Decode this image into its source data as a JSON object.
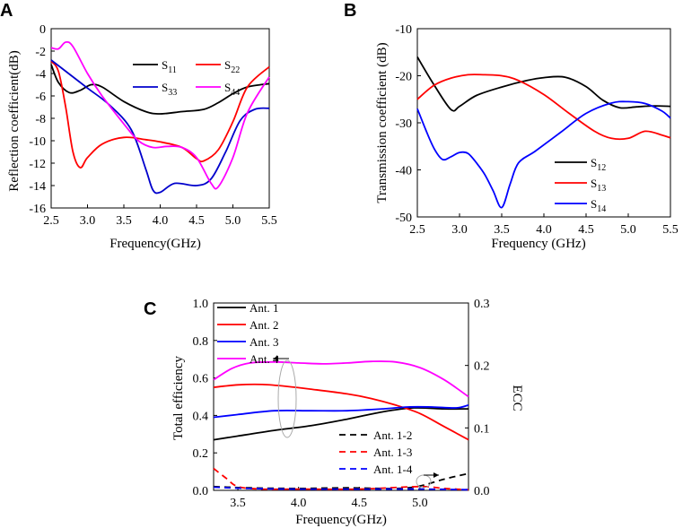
{
  "chart_data": [
    {
      "panel": "A",
      "type": "line",
      "xlabel": "Frequency(GHz)",
      "ylabel": "Reflection coefficient(dB)",
      "xlim": [
        2.5,
        5.5
      ],
      "ylim": [
        -16,
        0
      ],
      "xticks": [
        "2.5",
        "3.0",
        "3.5",
        "4.0",
        "4.5",
        "5.0",
        "5.5"
      ],
      "yticks": [
        "0",
        "-2",
        "-4",
        "-6",
        "-8",
        "-10",
        "-12",
        "-14",
        "-16"
      ],
      "series": [
        {
          "name": "S11",
          "base": "S",
          "sub": "11",
          "color": "#000000",
          "x": [
            2.5,
            2.6,
            2.75,
            2.9,
            3.05,
            3.2,
            3.5,
            3.8,
            4.0,
            4.3,
            4.6,
            4.8,
            5.0,
            5.2,
            5.5
          ],
          "y": [
            -3.2,
            -4.8,
            -5.7,
            -5.5,
            -5.0,
            -5.2,
            -6.5,
            -7.4,
            -7.6,
            -7.4,
            -7.2,
            -6.6,
            -5.8,
            -5.2,
            -4.9
          ]
        },
        {
          "name": "S22",
          "base": "S",
          "sub": "22",
          "color": "#ff0000",
          "x": [
            2.5,
            2.6,
            2.7,
            2.8,
            2.9,
            3.0,
            3.2,
            3.5,
            3.8,
            4.0,
            4.3,
            4.5,
            4.6,
            4.8,
            5.0,
            5.2,
            5.5
          ],
          "y": [
            -2.9,
            -3.8,
            -7.0,
            -11.0,
            -12.4,
            -11.5,
            -10.3,
            -9.7,
            -9.9,
            -10.1,
            -10.6,
            -11.6,
            -11.8,
            -10.8,
            -8.3,
            -5.2,
            -3.4
          ]
        },
        {
          "name": "S33",
          "base": "S",
          "sub": "33",
          "color": "#0000cc",
          "x": [
            2.5,
            2.7,
            3.0,
            3.3,
            3.6,
            3.8,
            3.9,
            4.0,
            4.2,
            4.5,
            4.7,
            4.9,
            5.1,
            5.3,
            5.5
          ],
          "y": [
            -2.8,
            -3.8,
            -5.3,
            -6.8,
            -9.0,
            -12.5,
            -14.4,
            -14.6,
            -13.8,
            -14.0,
            -13.4,
            -11.0,
            -8.2,
            -7.2,
            -7.1
          ]
        },
        {
          "name": "S44",
          "base": "S",
          "sub": "44",
          "color": "#ff00ff",
          "x": [
            2.5,
            2.6,
            2.7,
            2.8,
            3.0,
            3.2,
            3.5,
            3.7,
            3.9,
            4.1,
            4.3,
            4.5,
            4.7,
            4.8,
            5.0,
            5.2,
            5.5
          ],
          "y": [
            -1.7,
            -1.8,
            -1.2,
            -1.6,
            -4.0,
            -6.0,
            -8.5,
            -10.0,
            -10.6,
            -10.5,
            -10.6,
            -11.5,
            -13.8,
            -14.1,
            -11.5,
            -7.5,
            -4.3
          ]
        }
      ]
    },
    {
      "panel": "B",
      "type": "line",
      "xlabel": "Frequency (GHz)",
      "ylabel": "Transmission coefficient (dB)",
      "xlim": [
        2.5,
        5.5
      ],
      "ylim": [
        -50,
        -10
      ],
      "xticks": [
        "2.5",
        "3.0",
        "3.5",
        "4.0",
        "4.5",
        "5.0",
        "5.5"
      ],
      "yticks": [
        "-10",
        "-20",
        "-30",
        "-40",
        "-50"
      ],
      "series": [
        {
          "name": "S12",
          "base": "S",
          "sub": "12",
          "color": "#000000",
          "x": [
            2.5,
            2.7,
            2.9,
            3.0,
            3.2,
            3.5,
            3.8,
            4.0,
            4.25,
            4.5,
            4.7,
            4.9,
            5.1,
            5.3,
            5.5
          ],
          "y": [
            -16.0,
            -22.0,
            -27.2,
            -26.5,
            -24.2,
            -22.4,
            -21.0,
            -20.4,
            -20.3,
            -22.3,
            -25.2,
            -26.8,
            -26.6,
            -26.4,
            -26.5
          ]
        },
        {
          "name": "S13",
          "base": "S",
          "sub": "13",
          "color": "#ff0000",
          "x": [
            2.5,
            2.7,
            2.9,
            3.1,
            3.3,
            3.5,
            3.7,
            4.0,
            4.3,
            4.6,
            4.8,
            5.0,
            5.2,
            5.4,
            5.5
          ],
          "y": [
            -25.0,
            -22.0,
            -20.5,
            -19.8,
            -19.8,
            -20.0,
            -21.0,
            -24.0,
            -28.0,
            -31.8,
            -33.3,
            -33.3,
            -31.8,
            -32.6,
            -33.2
          ]
        },
        {
          "name": "S14",
          "base": "S",
          "sub": "14",
          "color": "#0000ff",
          "x": [
            2.5,
            2.6,
            2.7,
            2.8,
            2.9,
            3.0,
            3.1,
            3.2,
            3.3,
            3.4,
            3.5,
            3.6,
            3.7,
            3.9,
            4.2,
            4.5,
            4.8,
            5.0,
            5.2,
            5.4,
            5.5
          ],
          "y": [
            -27.0,
            -31.5,
            -35.5,
            -37.8,
            -37.2,
            -36.3,
            -36.5,
            -38.5,
            -41.0,
            -44.5,
            -48.0,
            -43.0,
            -38.5,
            -36.0,
            -32.0,
            -28.0,
            -25.8,
            -25.5,
            -25.9,
            -27.5,
            -29.0
          ]
        }
      ]
    },
    {
      "panel": "C",
      "type": "line",
      "xlabel": "Frequency(GHz)",
      "ylabel": "Total efficiency",
      "y2label": "ECC",
      "xlim": [
        3.3,
        5.4
      ],
      "ylim": [
        0,
        1.0
      ],
      "y2lim": [
        0,
        0.3
      ],
      "xticks": [
        "3.5",
        "4.0",
        "4.5",
        "5.0"
      ],
      "yticks": [
        "0.0",
        "0.2",
        "0.4",
        "0.6",
        "0.8",
        "1.0"
      ],
      "y2ticks": [
        "0.0",
        "0.1",
        "0.2",
        "0.3"
      ],
      "series": [
        {
          "name": "Ant. 1",
          "axis": "left",
          "dash": false,
          "color": "#000000",
          "x": [
            3.3,
            3.5,
            3.8,
            4.1,
            4.4,
            4.7,
            4.95,
            5.2,
            5.4
          ],
          "y": [
            0.27,
            0.29,
            0.32,
            0.345,
            0.38,
            0.42,
            0.44,
            0.435,
            0.435
          ]
        },
        {
          "name": "Ant. 2",
          "axis": "left",
          "dash": false,
          "color": "#ff0000",
          "x": [
            3.3,
            3.5,
            3.7,
            3.9,
            4.1,
            4.4,
            4.6,
            4.8,
            5.0,
            5.2,
            5.4
          ],
          "y": [
            0.55,
            0.563,
            0.565,
            0.555,
            0.54,
            0.515,
            0.49,
            0.455,
            0.41,
            0.34,
            0.27
          ]
        },
        {
          "name": "Ant. 3",
          "axis": "left",
          "dash": false,
          "color": "#0000ff",
          "x": [
            3.3,
            3.5,
            3.8,
            4.1,
            4.4,
            4.7,
            4.9,
            5.1,
            5.3,
            5.4
          ],
          "y": [
            0.39,
            0.405,
            0.425,
            0.425,
            0.425,
            0.435,
            0.445,
            0.445,
            0.44,
            0.455
          ]
        },
        {
          "name": "Ant. 4",
          "axis": "left",
          "dash": false,
          "color": "#ff00ff",
          "x": [
            3.3,
            3.45,
            3.6,
            3.8,
            4.0,
            4.2,
            4.4,
            4.6,
            4.8,
            5.0,
            5.2,
            5.4
          ],
          "y": [
            0.59,
            0.65,
            0.68,
            0.685,
            0.68,
            0.675,
            0.68,
            0.688,
            0.685,
            0.655,
            0.59,
            0.5
          ]
        },
        {
          "name": "Ant. 1-2",
          "axis": "right",
          "dash": true,
          "color": "#000000",
          "x": [
            3.3,
            3.6,
            4.0,
            4.4,
            4.8,
            5.0,
            5.2,
            5.4
          ],
          "y": [
            0.006,
            0.004,
            0.003,
            0.004,
            0.003,
            0.007,
            0.018,
            0.027
          ]
        },
        {
          "name": "Ant. 1-3",
          "axis": "right",
          "dash": true,
          "color": "#ff0000",
          "x": [
            3.3,
            3.4,
            3.5,
            3.7,
            4.0,
            4.5,
            5.0,
            5.2,
            5.4
          ],
          "y": [
            0.035,
            0.02,
            0.006,
            0.002,
            0.002,
            0.002,
            0.006,
            0.003,
            0.001
          ]
        },
        {
          "name": "Ant. 1-4",
          "axis": "right",
          "dash": true,
          "color": "#0000ff",
          "x": [
            3.3,
            3.6,
            4.0,
            4.5,
            5.0,
            5.4
          ],
          "y": [
            0.005,
            0.003,
            0.002,
            0.002,
            0.002,
            0.001
          ]
        }
      ]
    }
  ]
}
